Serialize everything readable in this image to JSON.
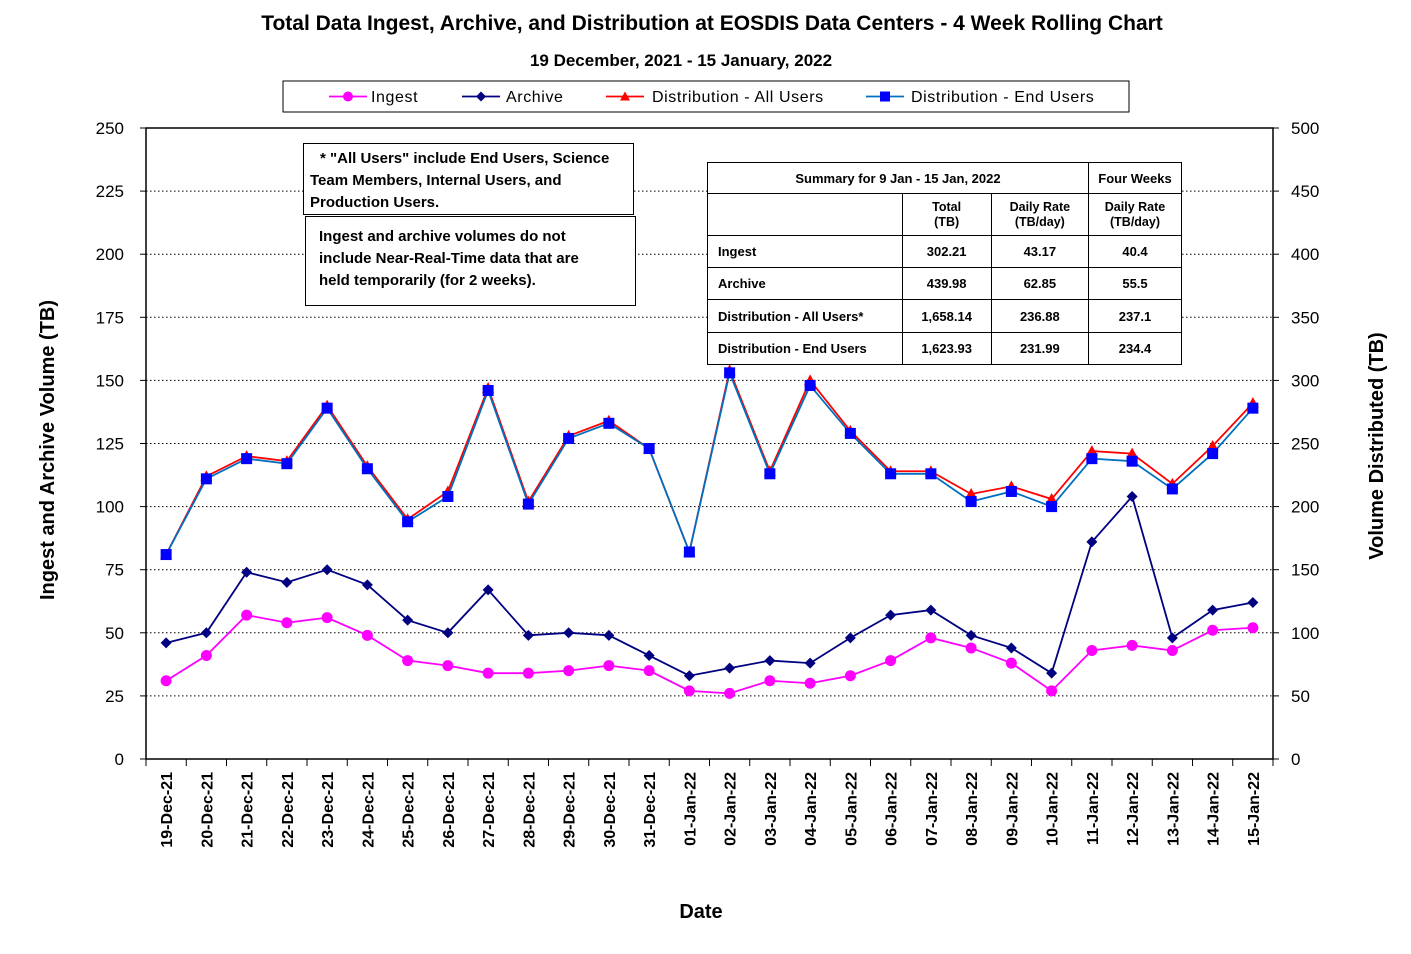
{
  "chart_data": {
    "type": "line",
    "title": "Total Data Ingest, Archive, and  Distribution at EOSDIS Data Centers - 4 Week Rolling Chart",
    "subtitle": "19  December,  2021  -  15  January, 2022",
    "xlabel": "Date",
    "ylabel_left": "Ingest and Archive Volume (TB)",
    "ylabel_right": "Volume Distributed (TB)",
    "ylim_left": [
      0,
      250
    ],
    "ylim_right": [
      0,
      500
    ],
    "yticks_left": [
      "0",
      "25",
      "50",
      "75",
      "100",
      "125",
      "150",
      "175",
      "200",
      "225",
      "250"
    ],
    "yticks_right": [
      "0",
      "50",
      "100",
      "150",
      "200",
      "250",
      "300",
      "350",
      "400",
      "450",
      "500"
    ],
    "grid": "horizontal dotted",
    "legend_position": "top",
    "categories": [
      "19-Dec-21",
      "20-Dec-21",
      "21-Dec-21",
      "22-Dec-21",
      "23-Dec-21",
      "24-Dec-21",
      "25-Dec-21",
      "26-Dec-21",
      "27-Dec-21",
      "28-Dec-21",
      "29-Dec-21",
      "30-Dec-21",
      "31-Dec-21",
      "01-Jan-22",
      "02-Jan-22",
      "03-Jan-22",
      "04-Jan-22",
      "05-Jan-22",
      "06-Jan-22",
      "07-Jan-22",
      "08-Jan-22",
      "09-Jan-22",
      "10-Jan-22",
      "11-Jan-22",
      "12-Jan-22",
      "13-Jan-22",
      "14-Jan-22",
      "15-Jan-22"
    ],
    "series": [
      {
        "name": "Ingest",
        "axis": "left",
        "color": "#ff00ff",
        "marker": "circle",
        "values": [
          31,
          41,
          57,
          54,
          56,
          49,
          39,
          37,
          34,
          34,
          35,
          37,
          35,
          27,
          26,
          31,
          30,
          33,
          39,
          48,
          44,
          38,
          27,
          43,
          45,
          43,
          51,
          52
        ]
      },
      {
        "name": "Archive",
        "axis": "left",
        "color": "#000080",
        "marker": "diamond",
        "values": [
          46,
          50,
          74,
          70,
          75,
          69,
          55,
          50,
          67,
          49,
          50,
          49,
          41,
          33,
          36,
          39,
          38,
          48,
          57,
          59,
          49,
          44,
          34,
          86,
          104,
          48,
          59,
          62
        ]
      },
      {
        "name": "Distribution - All Users",
        "axis": "right",
        "color": "#ff0000",
        "marker": "triangle",
        "values": [
          162,
          224,
          240,
          236,
          280,
          232,
          190,
          212,
          294,
          204,
          256,
          268,
          246,
          164,
          308,
          228,
          300,
          260,
          228,
          228,
          210,
          216,
          206,
          244,
          242,
          218,
          248,
          282
        ]
      },
      {
        "name": "Distribution - End Users",
        "axis": "right",
        "color": "#0000ff",
        "line_color": "#0070c0",
        "marker": "square",
        "values": [
          162,
          222,
          238,
          234,
          278,
          230,
          188,
          208,
          292,
          202,
          254,
          266,
          246,
          164,
          306,
          226,
          296,
          258,
          226,
          226,
          204,
          212,
          200,
          238,
          236,
          214,
          242,
          278
        ]
      }
    ],
    "annotations": {
      "note1": [
        "* \"All Users\" include End Users, Science",
        "Team Members,  Internal Users, and",
        "Production Users."
      ],
      "note2": [
        "Ingest and archive volumes do not",
        "include Near-Real-Time data that are",
        "held temporarily (for 2 weeks)."
      ]
    },
    "summary_table": {
      "title": "Summary  for  9  Jan  -  15 Jan,  2022",
      "four_weeks": "Four Weeks",
      "col_total": [
        "Total",
        "(TB)"
      ],
      "col_daily": [
        "Daily Rate",
        "(TB/day)"
      ],
      "col_four": [
        "Daily Rate",
        "(TB/day)"
      ],
      "rows": [
        {
          "label": "Ingest",
          "total": "302.21",
          "daily": "43.17",
          "four": "40.4"
        },
        {
          "label": "Archive",
          "total": "439.98",
          "daily": "62.85",
          "four": "55.5"
        },
        {
          "label": "Distribution - All Users*",
          "total": "1,658.14",
          "daily": "236.88",
          "four": "237.1"
        },
        {
          "label": "Distribution - End Users",
          "total": "1,623.93",
          "daily": "231.99",
          "four": "234.4"
        }
      ]
    }
  }
}
